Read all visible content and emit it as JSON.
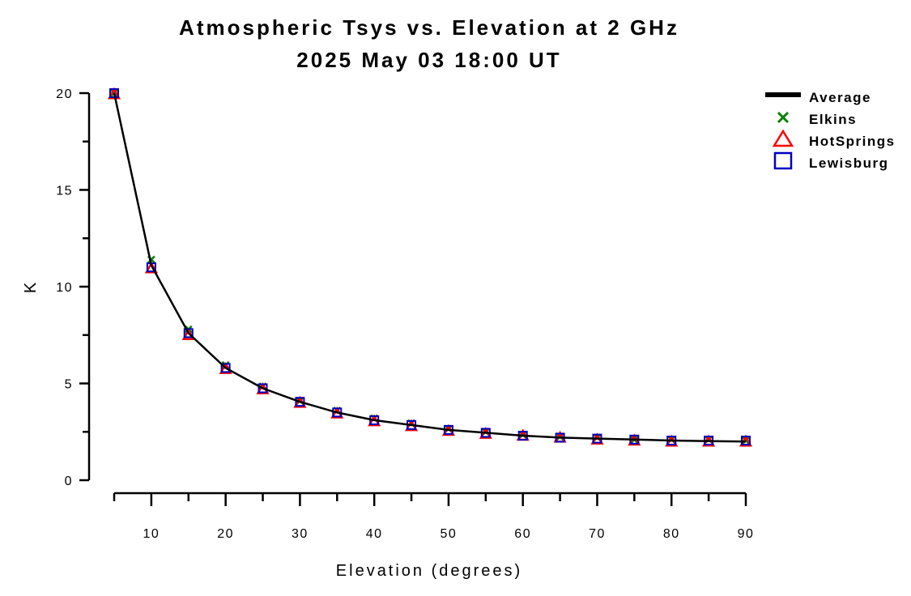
{
  "chart_data": {
    "type": "line",
    "title": "Atmospheric Tsys vs. Elevation at 2 GHz",
    "subtitle": "2025 May 03 18:00 UT",
    "xlabel": "Elevation (degrees)",
    "ylabel": "K",
    "xlim": [
      5,
      90
    ],
    "ylim": [
      0,
      20
    ],
    "x_ticks": [
      10,
      20,
      30,
      40,
      50,
      60,
      70,
      80,
      90
    ],
    "y_ticks": [
      0,
      5,
      10,
      15,
      20
    ],
    "grid": false,
    "legend_position": "top-right",
    "x": [
      5,
      10,
      15,
      20,
      25,
      30,
      35,
      40,
      45,
      50,
      55,
      60,
      65,
      70,
      75,
      80,
      85,
      90
    ],
    "series": [
      {
        "name": "Average",
        "style": "line",
        "color": "#000000",
        "values": [
          20.0,
          11.1,
          7.6,
          5.8,
          4.75,
          4.05,
          3.5,
          3.1,
          2.85,
          2.6,
          2.45,
          2.3,
          2.2,
          2.15,
          2.1,
          2.05,
          2.02,
          2.0
        ]
      },
      {
        "name": "Elkins",
        "style": "marker-x",
        "color": "#008000",
        "values": [
          20.0,
          11.4,
          7.8,
          5.95,
          4.85,
          4.1,
          3.6,
          3.2,
          2.95,
          2.65,
          2.5,
          2.35,
          2.25,
          2.2,
          2.1,
          2.1,
          2.1,
          2.05
        ]
      },
      {
        "name": "HotSprings",
        "style": "marker-triangle",
        "color": "#ff0000",
        "values": [
          19.95,
          10.95,
          7.5,
          5.75,
          4.7,
          4.0,
          3.45,
          3.05,
          2.8,
          2.55,
          2.4,
          2.3,
          2.2,
          2.1,
          2.05,
          2.0,
          2.0,
          2.0
        ]
      },
      {
        "name": "Lewisburg",
        "style": "marker-square",
        "color": "#0000c0",
        "values": [
          20.0,
          11.0,
          7.6,
          5.8,
          4.75,
          4.05,
          3.5,
          3.1,
          2.85,
          2.6,
          2.45,
          2.3,
          2.2,
          2.15,
          2.1,
          2.05,
          2.05,
          2.05
        ]
      }
    ]
  }
}
